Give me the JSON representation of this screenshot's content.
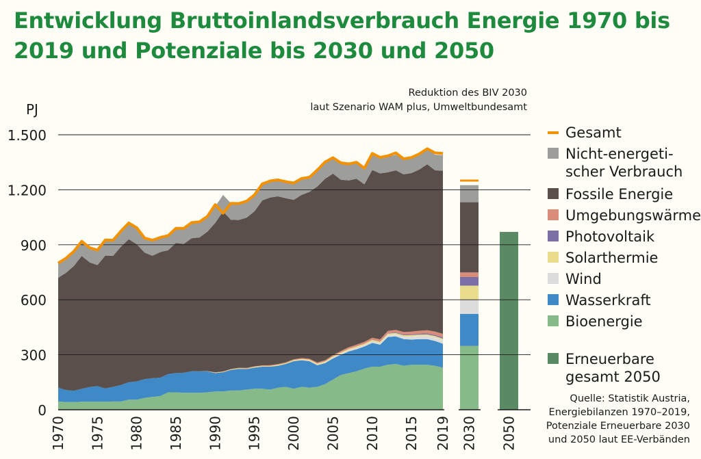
{
  "title": "Entwicklung Bruttoinlandsverbrauch Energie 1970 bis 2019 und Potenziale bis 2030 und 2050",
  "colors": {
    "gesamt": "#f39200",
    "nicht_energetisch": "#9d9d9c",
    "fossil": "#5b4f4c",
    "umgebung": "#d98c7a",
    "pv": "#7b6fa6",
    "solarthermie": "#e9dc8c",
    "wind": "#dcdcdc",
    "wasser": "#3f89c7",
    "bio": "#86bb89",
    "ee2050": "#5a8a64",
    "background": "#fefdf6",
    "title": "#1d8a3e"
  },
  "chart_data": {
    "type": "area",
    "title": "Entwicklung Bruttoinlandsverbrauch Energie 1970 bis 2019 und Potenziale bis 2030 und 2050",
    "ylabel": "PJ",
    "ylim": [
      0,
      1500
    ],
    "yticks": [
      0,
      300,
      600,
      900,
      1200,
      1500
    ],
    "ytick_labels": [
      "0",
      "300",
      "600",
      "900",
      "1.200",
      "1.500"
    ],
    "xticks": [
      1970,
      1975,
      1980,
      1985,
      1990,
      1995,
      2000,
      2005,
      2010,
      2015,
      2019
    ],
    "grid": true,
    "legend_position": "right",
    "annotation": "Reduktion des BIV 2030\nlaut Szenario WAM plus, Umweltbundesamt",
    "source": "Quelle: Statistik Austria,\nEnergiebilanzen 1970–2019,\nPotenziale Erneuerbare 2030\nund 2050 laut EE-Verbänden",
    "x": [
      1970,
      1971,
      1972,
      1973,
      1974,
      1975,
      1976,
      1977,
      1978,
      1979,
      1980,
      1981,
      1982,
      1983,
      1984,
      1985,
      1986,
      1987,
      1988,
      1989,
      1990,
      1991,
      1992,
      1993,
      1994,
      1995,
      1996,
      1997,
      1998,
      1999,
      2000,
      2001,
      2002,
      2003,
      2004,
      2005,
      2006,
      2007,
      2008,
      2009,
      2010,
      2011,
      2012,
      2013,
      2014,
      2015,
      2016,
      2017,
      2018,
      2019
    ],
    "series": [
      {
        "name": "Bioenergie",
        "key": "bio",
        "values": [
          45,
          42,
          42,
          44,
          44,
          44,
          44,
          45,
          45,
          55,
          55,
          65,
          70,
          75,
          95,
          95,
          92,
          92,
          92,
          95,
          100,
          100,
          105,
          105,
          110,
          115,
          115,
          110,
          120,
          125,
          115,
          125,
          120,
          125,
          140,
          165,
          190,
          200,
          210,
          225,
          235,
          235,
          245,
          250,
          240,
          245,
          245,
          245,
          240,
          230
        ]
      },
      {
        "name": "Wasserkraft",
        "key": "wasser",
        "values": [
          75,
          65,
          62,
          70,
          80,
          85,
          72,
          80,
          90,
          95,
          100,
          102,
          102,
          100,
          100,
          105,
          110,
          118,
          118,
          115,
          100,
          105,
          112,
          118,
          112,
          115,
          120,
          125,
          120,
          125,
          150,
          145,
          145,
          118,
          115,
          115,
          110,
          118,
          120,
          120,
          130,
          120,
          152,
          150,
          145,
          138,
          140,
          140,
          135,
          130
        ]
      },
      {
        "name": "Wind",
        "key": "wind",
        "values": [
          0,
          0,
          0,
          0,
          0,
          0,
          0,
          0,
          0,
          0,
          0,
          0,
          0,
          0,
          0,
          0,
          0,
          0,
          0,
          0,
          0,
          0,
          0,
          0,
          0,
          0,
          0,
          0,
          0,
          0,
          1,
          2,
          2,
          3,
          3,
          5,
          6,
          7,
          8,
          8,
          9,
          9,
          11,
          12,
          14,
          17,
          18,
          19,
          20,
          21
        ]
      },
      {
        "name": "Solarthermie",
        "key": "solar",
        "values": [
          0,
          0,
          0,
          0,
          0,
          0,
          0,
          0,
          0,
          0,
          0,
          0,
          0,
          0,
          0,
          0,
          0,
          0,
          0,
          1,
          2,
          2,
          3,
          3,
          3,
          4,
          4,
          4,
          5,
          5,
          5,
          5,
          6,
          6,
          6,
          6,
          6,
          7,
          7,
          7,
          7,
          7,
          7,
          7,
          7,
          7,
          7,
          7,
          7,
          7
        ]
      },
      {
        "name": "Photovoltaik",
        "key": "pv",
        "values": [
          0,
          0,
          0,
          0,
          0,
          0,
          0,
          0,
          0,
          0,
          0,
          0,
          0,
          0,
          0,
          0,
          0,
          0,
          0,
          0,
          0,
          0,
          0,
          0,
          0,
          0,
          0,
          0,
          0,
          0,
          0,
          0,
          0,
          0,
          0,
          0,
          0,
          0,
          0,
          0,
          1,
          1,
          2,
          3,
          4,
          4,
          5,
          6,
          6,
          7
        ]
      },
      {
        "name": "Umgebungswärme",
        "key": "umgebung",
        "values": [
          0,
          0,
          0,
          0,
          0,
          0,
          0,
          0,
          0,
          0,
          0,
          0,
          0,
          0,
          0,
          0,
          0,
          0,
          0,
          0,
          2,
          2,
          2,
          3,
          3,
          3,
          3,
          4,
          4,
          4,
          4,
          5,
          5,
          6,
          6,
          7,
          8,
          9,
          10,
          10,
          11,
          12,
          13,
          14,
          14,
          15,
          16,
          17,
          18,
          19
        ]
      },
      {
        "name": "Fossile Energie",
        "key": "fossil",
        "values": [
          600,
          640,
          680,
          725,
          680,
          660,
          725,
          715,
          755,
          780,
          748,
          690,
          668,
          685,
          675,
          710,
          703,
          726,
          730,
          760,
          815,
          873,
          814,
          806,
          820,
          845,
          900,
          915,
          915,
          895,
          870,
          890,
          910,
          960,
          990,
          990,
          935,
          910,
          905,
          860,
          915,
          905,
          865,
          870,
          860,
          865,
          880,
          905,
          880,
          890
        ]
      },
      {
        "name": "Nicht-energetischer Verbrauch",
        "key": "nicht_energetisch",
        "values": [
          80,
          80,
          80,
          80,
          80,
          82,
          85,
          85,
          85,
          88,
          90,
          80,
          80,
          80,
          80,
          80,
          85,
          85,
          85,
          85,
          90,
          90,
          90,
          90,
          90,
          90,
          90,
          90,
          90,
          90,
          90,
          90,
          90,
          90,
          92,
          92,
          92,
          90,
          90,
          88,
          90,
          88,
          85,
          85,
          85,
          85,
          85,
          85,
          85,
          85
        ]
      },
      {
        "name": "Gesamt",
        "key": "gesamt",
        "values": [
          800,
          827,
          864,
          919,
          884,
          871,
          926,
          925,
          975,
          1019,
          993,
          937,
          925,
          940,
          950,
          990,
          990,
          1021,
          1025,
          1055,
          1119,
          1072,
          1126,
          1125,
          1138,
          1172,
          1232,
          1248,
          1254,
          1244,
          1237,
          1262,
          1268,
          1308,
          1352,
          1375,
          1347,
          1341,
          1350,
          1318,
          1398,
          1377,
          1385,
          1401,
          1369,
          1376,
          1396,
          1424,
          1401,
          1398
        ]
      }
    ],
    "scenario_2030": {
      "x": "2030",
      "stack": [
        {
          "name": "Bioenergie",
          "key": "bio",
          "value": 348
        },
        {
          "name": "Wasserkraft",
          "key": "wasser",
          "value": 175
        },
        {
          "name": "Wind",
          "key": "wind",
          "value": 78
        },
        {
          "name": "Solarthermie",
          "key": "solar",
          "value": 76
        },
        {
          "name": "Photovoltaik",
          "key": "pv",
          "value": 47
        },
        {
          "name": "Umgebungswärme",
          "key": "umgebung",
          "value": 25
        },
        {
          "name": "Fossile Energie",
          "key": "fossil",
          "value": 383
        },
        {
          "name": "Nicht-energetischer Verbrauch",
          "key": "nicht_energetisch",
          "value": 93
        }
      ],
      "gesamt": 1250
    },
    "scenario_2050": {
      "x": "2050",
      "name": "Erneuerbare gesamt 2050",
      "key": "ee2050",
      "value": 970
    }
  },
  "legend": [
    {
      "key": "gesamt",
      "lines": [
        "Gesamt"
      ],
      "marker": "line"
    },
    {
      "key": "nicht_energetisch",
      "lines": [
        "Nicht-energeti-",
        "scher Verbrauch"
      ],
      "marker": "box"
    },
    {
      "key": "fossil",
      "lines": [
        "Fossile Energie"
      ],
      "marker": "box"
    },
    {
      "key": "umgebung",
      "lines": [
        "Umgebungswärme"
      ],
      "marker": "box"
    },
    {
      "key": "pv",
      "lines": [
        "Photovoltaik"
      ],
      "marker": "box"
    },
    {
      "key": "solar",
      "lines": [
        "Solarthermie"
      ],
      "marker": "box"
    },
    {
      "key": "wind",
      "lines": [
        "Wind"
      ],
      "marker": "box"
    },
    {
      "key": "wasser",
      "lines": [
        "Wasserkraft"
      ],
      "marker": "box"
    },
    {
      "key": "bio",
      "lines": [
        "Bioenergie"
      ],
      "marker": "box"
    },
    {
      "key": "ee2050",
      "lines": [
        "Erneuerbare",
        "gesamt 2050"
      ],
      "marker": "box"
    }
  ]
}
